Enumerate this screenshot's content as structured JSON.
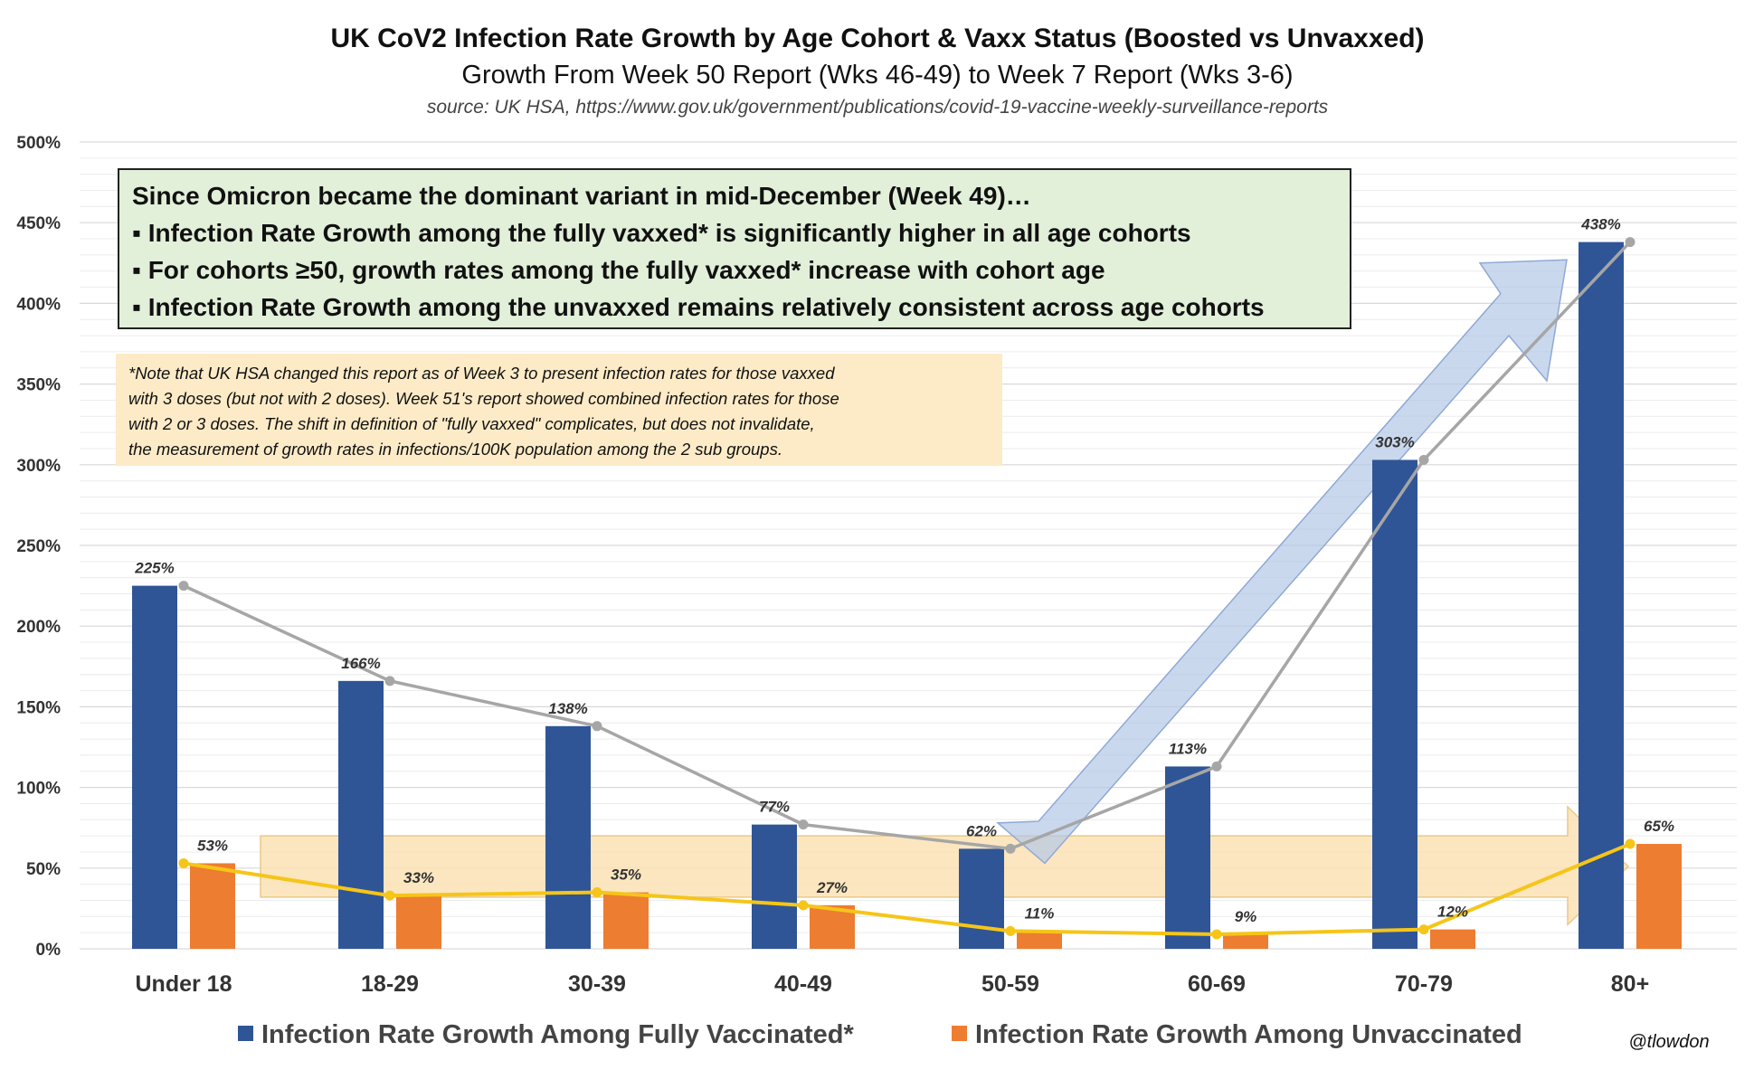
{
  "chart_data": {
    "type": "bar",
    "title": "UK CoV2 Infection Rate Growth by Age Cohort & Vaxx Status (Boosted vs Unvaxxed)",
    "subtitle": "Growth From Week 50 Report (Wks 46-49)  to Week 7 Report (Wks 3-6)",
    "source": "source:  UK HSA, https://www.gov.uk/government/publications/covid-19-vaccine-weekly-surveillance-reports",
    "categories": [
      "Under 18",
      "18-29",
      "30-39",
      "40-49",
      "50-59",
      "60-69",
      "70-79",
      "80+"
    ],
    "y_ticks": [
      "0%",
      "50%",
      "100%",
      "150%",
      "200%",
      "250%",
      "300%",
      "350%",
      "400%",
      "450%",
      "500%"
    ],
    "ylim": [
      0,
      500
    ],
    "grid": true,
    "legend_position": "bottom",
    "series": [
      {
        "name": "Infection Rate Growth Among Fully Vaccinated*",
        "color": "#2f5597",
        "line_color": "#a6a6a6",
        "values": [
          225,
          166,
          138,
          77,
          62,
          113,
          303,
          438
        ],
        "labels": [
          "225%",
          "166%",
          "138%",
          "77%",
          "62%",
          "113%",
          "303%",
          "438%"
        ]
      },
      {
        "name": "Infection Rate Growth Among Unvaccinated",
        "color": "#ed7d31",
        "line_color": "#f5c518",
        "values": [
          53,
          33,
          35,
          27,
          11,
          9,
          12,
          65
        ],
        "labels": [
          "53%",
          "33%",
          "35%",
          "27%",
          "11%",
          "9%",
          "12%",
          "65%"
        ]
      }
    ],
    "annotations": {
      "callout_lines": [
        "Since Omicron became the dominant variant in mid-December (Week 49)…",
        "▪ Infection Rate Growth among the fully vaxxed* is significantly higher in all age cohorts",
        "▪ For cohorts ≥50, growth rates among the fully vaxxed* increase with cohort age",
        "▪ Infection Rate Growth among the unvaxxed remains relatively consistent across age cohorts"
      ],
      "note_lines": [
        "*Note that UK HSA changed this report as of Week 3 to present infection rates for those vaxxed",
        "with 3 doses (but not with 2 doses).  Week 51's report showed combined infection rates for those",
        "with 2 or 3 doses.  The shift in definition of \"fully vaxxed\" complicates, but does not invalidate,",
        "the measurement of growth rates in infections/100K population among the 2 sub groups."
      ],
      "credit": "@tlowdon",
      "arrow_colors": {
        "blue": "#b4c7e7",
        "orange": "#fbe1b2"
      }
    }
  }
}
